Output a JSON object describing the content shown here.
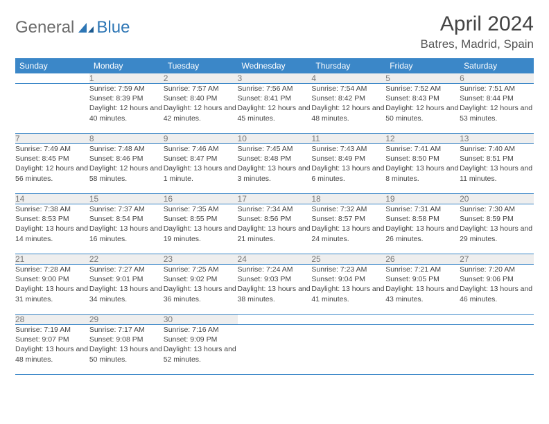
{
  "brand": {
    "part1": "General",
    "part2": "Blue"
  },
  "title": "April 2024",
  "location": "Batres, Madrid, Spain",
  "colors": {
    "header_bg": "#3b87c8",
    "header_fg": "#ffffff",
    "daynum_bg": "#eeeeee",
    "daynum_fg": "#777777",
    "border": "#3b87c8",
    "text": "#444444",
    "brand_gray": "#6b6b6b",
    "brand_blue": "#2d76b5",
    "page_bg": "#ffffff"
  },
  "typography": {
    "title_fontsize": 30,
    "location_fontsize": 17,
    "header_fontsize": 12,
    "daynum_fontsize": 12,
    "cell_fontsize": 10.5,
    "logo_fontsize": 24
  },
  "day_names": [
    "Sunday",
    "Monday",
    "Tuesday",
    "Wednesday",
    "Thursday",
    "Friday",
    "Saturday"
  ],
  "weeks": [
    {
      "nums": [
        "",
        "1",
        "2",
        "3",
        "4",
        "5",
        "6"
      ],
      "cells": [
        "",
        "Sunrise: 7:59 AM\nSunset: 8:39 PM\nDaylight: 12 hours and 40 minutes.",
        "Sunrise: 7:57 AM\nSunset: 8:40 PM\nDaylight: 12 hours and 42 minutes.",
        "Sunrise: 7:56 AM\nSunset: 8:41 PM\nDaylight: 12 hours and 45 minutes.",
        "Sunrise: 7:54 AM\nSunset: 8:42 PM\nDaylight: 12 hours and 48 minutes.",
        "Sunrise: 7:52 AM\nSunset: 8:43 PM\nDaylight: 12 hours and 50 minutes.",
        "Sunrise: 7:51 AM\nSunset: 8:44 PM\nDaylight: 12 hours and 53 minutes."
      ]
    },
    {
      "nums": [
        "7",
        "8",
        "9",
        "10",
        "11",
        "12",
        "13"
      ],
      "cells": [
        "Sunrise: 7:49 AM\nSunset: 8:45 PM\nDaylight: 12 hours and 56 minutes.",
        "Sunrise: 7:48 AM\nSunset: 8:46 PM\nDaylight: 12 hours and 58 minutes.",
        "Sunrise: 7:46 AM\nSunset: 8:47 PM\nDaylight: 13 hours and 1 minute.",
        "Sunrise: 7:45 AM\nSunset: 8:48 PM\nDaylight: 13 hours and 3 minutes.",
        "Sunrise: 7:43 AM\nSunset: 8:49 PM\nDaylight: 13 hours and 6 minutes.",
        "Sunrise: 7:41 AM\nSunset: 8:50 PM\nDaylight: 13 hours and 8 minutes.",
        "Sunrise: 7:40 AM\nSunset: 8:51 PM\nDaylight: 13 hours and 11 minutes."
      ]
    },
    {
      "nums": [
        "14",
        "15",
        "16",
        "17",
        "18",
        "19",
        "20"
      ],
      "cells": [
        "Sunrise: 7:38 AM\nSunset: 8:53 PM\nDaylight: 13 hours and 14 minutes.",
        "Sunrise: 7:37 AM\nSunset: 8:54 PM\nDaylight: 13 hours and 16 minutes.",
        "Sunrise: 7:35 AM\nSunset: 8:55 PM\nDaylight: 13 hours and 19 minutes.",
        "Sunrise: 7:34 AM\nSunset: 8:56 PM\nDaylight: 13 hours and 21 minutes.",
        "Sunrise: 7:32 AM\nSunset: 8:57 PM\nDaylight: 13 hours and 24 minutes.",
        "Sunrise: 7:31 AM\nSunset: 8:58 PM\nDaylight: 13 hours and 26 minutes.",
        "Sunrise: 7:30 AM\nSunset: 8:59 PM\nDaylight: 13 hours and 29 minutes."
      ]
    },
    {
      "nums": [
        "21",
        "22",
        "23",
        "24",
        "25",
        "26",
        "27"
      ],
      "cells": [
        "Sunrise: 7:28 AM\nSunset: 9:00 PM\nDaylight: 13 hours and 31 minutes.",
        "Sunrise: 7:27 AM\nSunset: 9:01 PM\nDaylight: 13 hours and 34 minutes.",
        "Sunrise: 7:25 AM\nSunset: 9:02 PM\nDaylight: 13 hours and 36 minutes.",
        "Sunrise: 7:24 AM\nSunset: 9:03 PM\nDaylight: 13 hours and 38 minutes.",
        "Sunrise: 7:23 AM\nSunset: 9:04 PM\nDaylight: 13 hours and 41 minutes.",
        "Sunrise: 7:21 AM\nSunset: 9:05 PM\nDaylight: 13 hours and 43 minutes.",
        "Sunrise: 7:20 AM\nSunset: 9:06 PM\nDaylight: 13 hours and 46 minutes."
      ]
    },
    {
      "nums": [
        "28",
        "29",
        "30",
        "",
        "",
        "",
        ""
      ],
      "cells": [
        "Sunrise: 7:19 AM\nSunset: 9:07 PM\nDaylight: 13 hours and 48 minutes.",
        "Sunrise: 7:17 AM\nSunset: 9:08 PM\nDaylight: 13 hours and 50 minutes.",
        "Sunrise: 7:16 AM\nSunset: 9:09 PM\nDaylight: 13 hours and 52 minutes.",
        "",
        "",
        "",
        ""
      ]
    }
  ]
}
